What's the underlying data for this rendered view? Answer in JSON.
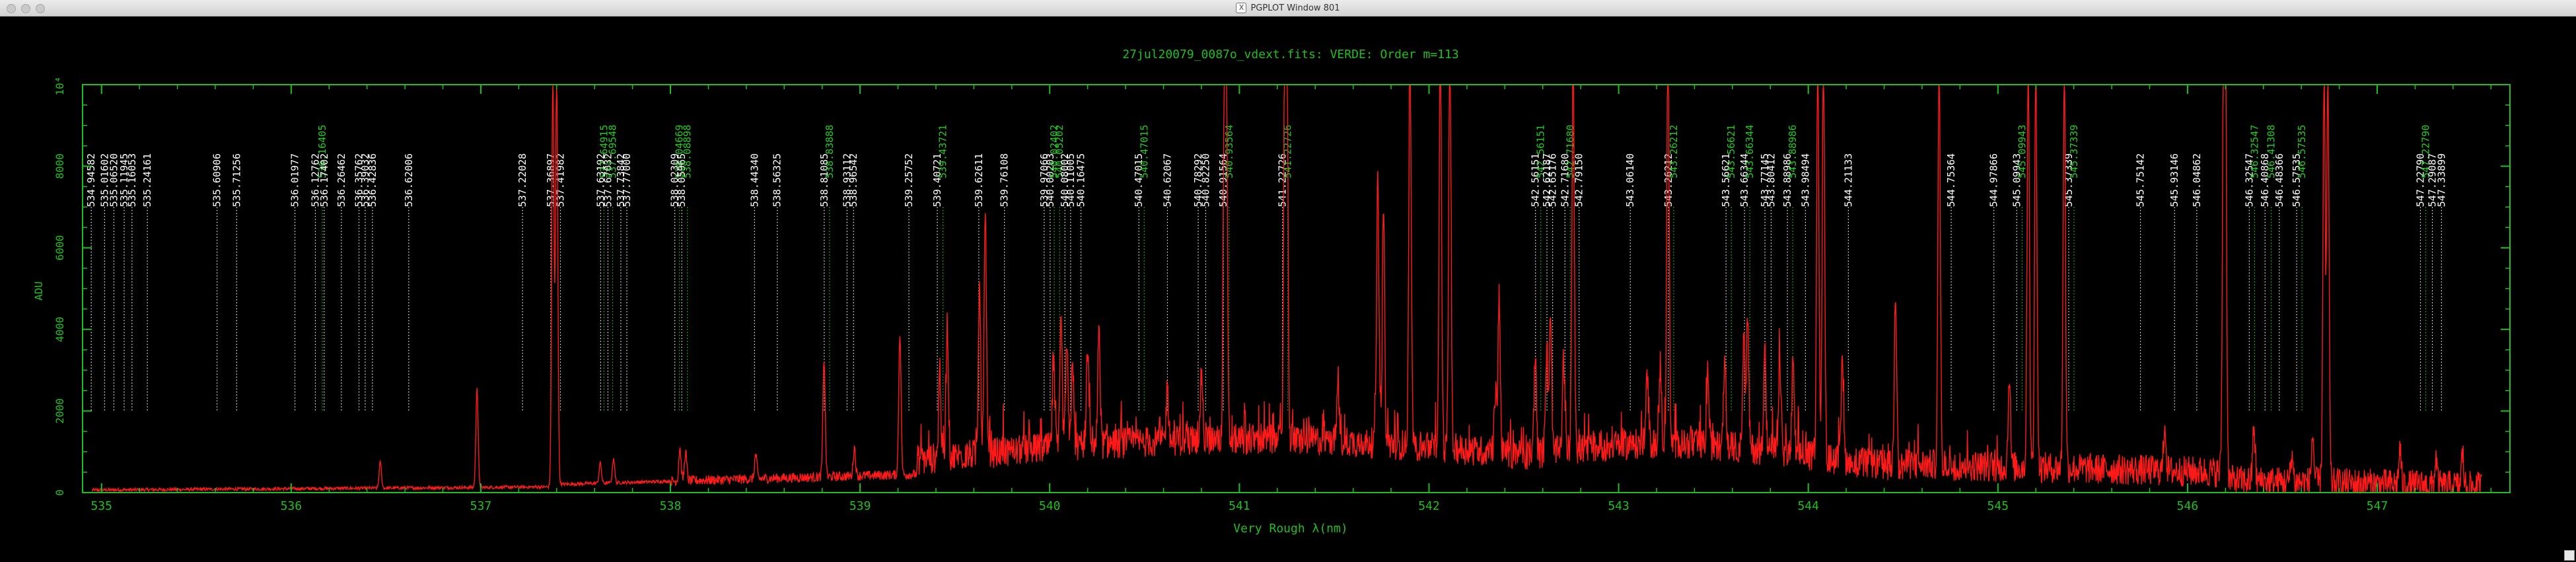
{
  "window": {
    "title": "PGPLOT Window 801"
  },
  "colors": {
    "axis": "#1fbf1f",
    "spectrum": "#ff1a1a",
    "label_white": "#ffffff",
    "label_green": "#22cc22",
    "background": "#000000"
  },
  "chart_data": {
    "type": "line",
    "title": "27jul20079_0087o_vdext.fits: VERDE: Order m=113",
    "xlabel": "Very Rough λ(nm)",
    "ylabel": "ADU",
    "xlim": [
      534.9,
      547.7
    ],
    "ylim": [
      0,
      10000
    ],
    "x_ticks": [
      535,
      536,
      537,
      538,
      539,
      540,
      541,
      542,
      543,
      544,
      545,
      546,
      547
    ],
    "y_ticks": [
      0,
      2000,
      4000,
      6000,
      8000
    ],
    "y_top_label": "10⁴",
    "grid": false,
    "series": [
      {
        "peaks": [
          [
            536.47,
            650
          ],
          [
            536.98,
            2450
          ],
          [
            537.38,
            10000
          ],
          [
            537.4,
            10000
          ],
          [
            537.63,
            500
          ],
          [
            537.7,
            600
          ],
          [
            538.05,
            800
          ],
          [
            538.08,
            700
          ],
          [
            538.45,
            600
          ],
          [
            538.81,
            2900
          ],
          [
            538.97,
            700
          ],
          [
            539.21,
            3500
          ],
          [
            539.42,
            2200
          ],
          [
            539.46,
            3300
          ],
          [
            539.63,
            4100
          ],
          [
            539.66,
            5800
          ],
          [
            540.02,
            2100
          ],
          [
            540.06,
            3000
          ],
          [
            540.09,
            2500
          ],
          [
            540.12,
            2200
          ],
          [
            540.2,
            2300
          ],
          [
            540.26,
            3000
          ],
          [
            540.62,
            1300
          ],
          [
            540.8,
            1600
          ],
          [
            540.92,
            7100
          ],
          [
            540.93,
            10000
          ],
          [
            541.24,
            10000
          ],
          [
            541.25,
            10000
          ],
          [
            541.52,
            1500
          ],
          [
            541.73,
            6500
          ],
          [
            541.76,
            5800
          ],
          [
            541.9,
            10000
          ],
          [
            542.06,
            10000
          ],
          [
            542.11,
            10000
          ],
          [
            542.35,
            1500
          ],
          [
            542.37,
            3900
          ],
          [
            542.56,
            2500
          ],
          [
            542.62,
            2500
          ],
          [
            542.64,
            3200
          ],
          [
            542.71,
            2300
          ],
          [
            542.76,
            10000
          ],
          [
            543.15,
            1700
          ],
          [
            543.22,
            2000
          ],
          [
            543.26,
            10000
          ],
          [
            543.47,
            1800
          ],
          [
            543.56,
            2200
          ],
          [
            543.66,
            2700
          ],
          [
            543.68,
            3200
          ],
          [
            543.77,
            2600
          ],
          [
            543.85,
            2300
          ],
          [
            543.92,
            2200
          ],
          [
            544.05,
            10000
          ],
          [
            544.08,
            10000
          ],
          [
            544.18,
            2500
          ],
          [
            544.46,
            4300
          ],
          [
            544.69,
            10000
          ],
          [
            545.06,
            2300
          ],
          [
            545.16,
            10000
          ],
          [
            545.2,
            10000
          ],
          [
            545.35,
            10000
          ],
          [
            545.88,
            1200
          ],
          [
            546.19,
            10000
          ],
          [
            546.2,
            10000
          ],
          [
            546.35,
            1400
          ],
          [
            546.55,
            700
          ],
          [
            546.66,
            1200
          ],
          [
            546.72,
            10000
          ],
          [
            546.74,
            10000
          ],
          [
            547.12,
            900
          ],
          [
            547.31,
            700
          ],
          [
            547.45,
            800
          ]
        ]
      }
    ],
    "line_labels": [
      {
        "label": "534.94582",
        "x": 534.94582,
        "color": "white"
      },
      {
        "label": "535.01602",
        "x": 535.01602,
        "color": "white"
      },
      {
        "label": "535.06520",
        "x": 535.0652,
        "color": "white"
      },
      {
        "label": "535.11945",
        "x": 535.11945,
        "color": "white"
      },
      {
        "label": "535.16053",
        "x": 535.16053,
        "color": "white"
      },
      {
        "label": "535.24161",
        "x": 535.24161,
        "color": "white"
      },
      {
        "label": "535.60906",
        "x": 535.60906,
        "color": "white"
      },
      {
        "label": "535.71256",
        "x": 535.71256,
        "color": "white"
      },
      {
        "label": "536.01977",
        "x": 536.01977,
        "color": "white"
      },
      {
        "label": "536.12762",
        "x": 536.12762,
        "color": "white"
      },
      {
        "label": "536.16405",
        "x": 536.16405,
        "color": "green"
      },
      {
        "label": "536.17402",
        "x": 536.17402,
        "color": "white"
      },
      {
        "label": "536.26462",
        "x": 536.26462,
        "color": "white"
      },
      {
        "label": "536.35762",
        "x": 536.35762,
        "color": "white"
      },
      {
        "label": "536.39032",
        "x": 536.39032,
        "color": "white"
      },
      {
        "label": "536.42836",
        "x": 536.42836,
        "color": "white"
      },
      {
        "label": "536.62006",
        "x": 536.62006,
        "color": "white"
      },
      {
        "label": "537.22028",
        "x": 537.22028,
        "color": "white"
      },
      {
        "label": "537.36897",
        "x": 537.36897,
        "color": "white"
      },
      {
        "label": "537.41982",
        "x": 537.41982,
        "color": "white"
      },
      {
        "label": "537.63192",
        "x": 537.63192,
        "color": "white"
      },
      {
        "label": "537.64915",
        "x": 537.64915,
        "color": "green"
      },
      {
        "label": "537.67032",
        "x": 537.67032,
        "color": "white"
      },
      {
        "label": "537.69548",
        "x": 537.69548,
        "color": "green"
      },
      {
        "label": "537.73842",
        "x": 537.73842,
        "color": "white"
      },
      {
        "label": "537.77000",
        "x": 537.77,
        "color": "white"
      },
      {
        "label": "538.02309",
        "x": 538.02309,
        "color": "white"
      },
      {
        "label": "538.04669",
        "x": 538.04669,
        "color": "green"
      },
      {
        "label": "538.05965",
        "x": 538.05965,
        "color": "white"
      },
      {
        "label": "538.08898",
        "x": 538.08898,
        "color": "green"
      },
      {
        "label": "538.44340",
        "x": 538.4434,
        "color": "white"
      },
      {
        "label": "538.56325",
        "x": 538.56325,
        "color": "white"
      },
      {
        "label": "538.81085",
        "x": 538.81085,
        "color": "white"
      },
      {
        "label": "538.83888",
        "x": 538.83888,
        "color": "green"
      },
      {
        "label": "538.93112",
        "x": 538.93112,
        "color": "white"
      },
      {
        "label": "538.96542",
        "x": 538.96542,
        "color": "white"
      },
      {
        "label": "539.25752",
        "x": 539.25752,
        "color": "white"
      },
      {
        "label": "539.40721",
        "x": 539.40721,
        "color": "white"
      },
      {
        "label": "539.43721",
        "x": 539.43721,
        "color": "green"
      },
      {
        "label": "539.62611",
        "x": 539.62611,
        "color": "white"
      },
      {
        "label": "539.76108",
        "x": 539.76108,
        "color": "white"
      },
      {
        "label": "539.97066",
        "x": 539.97066,
        "color": "white"
      },
      {
        "label": "540.00203",
        "x": 540.00203,
        "color": "white"
      },
      {
        "label": "540.02402",
        "x": 540.02402,
        "color": "green"
      },
      {
        "label": "540.05202",
        "x": 540.05202,
        "color": "green"
      },
      {
        "label": "540.08002",
        "x": 540.08002,
        "color": "white"
      },
      {
        "label": "540.11005",
        "x": 540.11005,
        "color": "white"
      },
      {
        "label": "540.16475",
        "x": 540.16475,
        "color": "white"
      },
      {
        "label": "540.47015",
        "x": 540.47015,
        "color": "white"
      },
      {
        "label": "540.47015",
        "x": 540.49815,
        "color": "green"
      },
      {
        "label": "540.62067",
        "x": 540.62067,
        "color": "white"
      },
      {
        "label": "540.78292",
        "x": 540.78292,
        "color": "white"
      },
      {
        "label": "540.82250",
        "x": 540.8225,
        "color": "white"
      },
      {
        "label": "540.91564",
        "x": 540.91564,
        "color": "white"
      },
      {
        "label": "540.93564",
        "x": 540.94564,
        "color": "green"
      },
      {
        "label": "541.22726",
        "x": 541.22726,
        "color": "white"
      },
      {
        "label": "541.22726",
        "x": 541.25526,
        "color": "green"
      },
      {
        "label": "542.56151",
        "x": 542.56151,
        "color": "white"
      },
      {
        "label": "542.56151",
        "x": 542.58951,
        "color": "green"
      },
      {
        "label": "542.62187",
        "x": 542.62187,
        "color": "white"
      },
      {
        "label": "542.65176",
        "x": 542.65176,
        "color": "white"
      },
      {
        "label": "542.71680",
        "x": 542.7168,
        "color": "white"
      },
      {
        "label": "542.71680",
        "x": 542.7448,
        "color": "green"
      },
      {
        "label": "542.79150",
        "x": 542.7915,
        "color": "white"
      },
      {
        "label": "543.06140",
        "x": 543.0614,
        "color": "white"
      },
      {
        "label": "543.26212",
        "x": 543.26212,
        "color": "white"
      },
      {
        "label": "543.26212",
        "x": 543.29012,
        "color": "green"
      },
      {
        "label": "543.56621",
        "x": 543.56621,
        "color": "white"
      },
      {
        "label": "543.56621",
        "x": 543.59421,
        "color": "green"
      },
      {
        "label": "543.66344",
        "x": 543.66344,
        "color": "white"
      },
      {
        "label": "543.66344",
        "x": 543.69144,
        "color": "green"
      },
      {
        "label": "543.77145",
        "x": 543.77145,
        "color": "white"
      },
      {
        "label": "543.80412",
        "x": 543.80412,
        "color": "white"
      },
      {
        "label": "543.88986",
        "x": 543.88986,
        "color": "white"
      },
      {
        "label": "543.88986",
        "x": 543.91786,
        "color": "green"
      },
      {
        "label": "543.98494",
        "x": 543.98494,
        "color": "white"
      },
      {
        "label": "544.21133",
        "x": 544.21133,
        "color": "white"
      },
      {
        "label": "544.75364",
        "x": 544.75364,
        "color": "white"
      },
      {
        "label": "544.97866",
        "x": 544.97866,
        "color": "white"
      },
      {
        "label": "545.09943",
        "x": 545.09943,
        "color": "white"
      },
      {
        "label": "545.09943",
        "x": 545.12743,
        "color": "green"
      },
      {
        "label": "545.37339",
        "x": 545.37339,
        "color": "white"
      },
      {
        "label": "545.37339",
        "x": 545.40139,
        "color": "green"
      },
      {
        "label": "545.75142",
        "x": 545.75142,
        "color": "white"
      },
      {
        "label": "545.93146",
        "x": 545.93146,
        "color": "white"
      },
      {
        "label": "546.04862",
        "x": 546.04862,
        "color": "white"
      },
      {
        "label": "546.32547",
        "x": 546.32547,
        "color": "white"
      },
      {
        "label": "546.32547",
        "x": 546.35347,
        "color": "green"
      },
      {
        "label": "546.40868",
        "x": 546.40868,
        "color": "white"
      },
      {
        "label": "546.41308",
        "x": 546.44108,
        "color": "green"
      },
      {
        "label": "546.48366",
        "x": 546.48366,
        "color": "white"
      },
      {
        "label": "546.57535",
        "x": 546.57535,
        "color": "white"
      },
      {
        "label": "546.57535",
        "x": 546.60335,
        "color": "green"
      },
      {
        "label": "547.22790",
        "x": 547.2279,
        "color": "white"
      },
      {
        "label": "547.22790",
        "x": 547.2559,
        "color": "green"
      },
      {
        "label": "547.29087",
        "x": 547.29087,
        "color": "white"
      },
      {
        "label": "547.33899",
        "x": 547.33899,
        "color": "white"
      }
    ]
  }
}
